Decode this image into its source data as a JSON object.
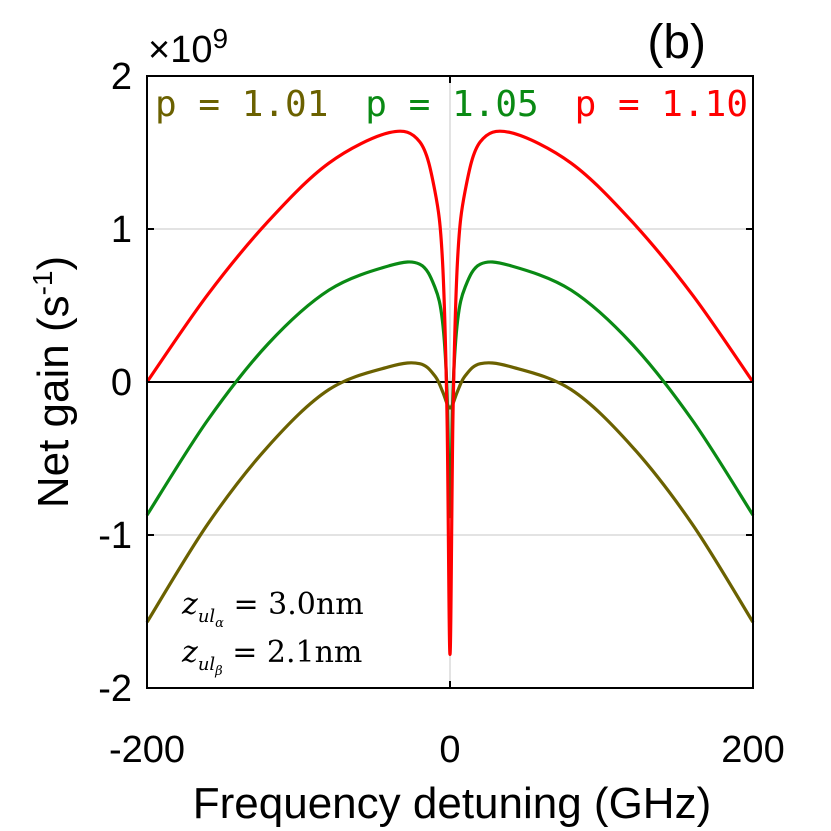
{
  "chart_data": {
    "type": "line",
    "panel_label": "(b)",
    "xlabel": "Frequency detuning (GHz)",
    "ylabel_main": "Net gain (s",
    "ylabel_exp": "-1",
    "ylabel_close": ")",
    "exponent_prefix": "×10",
    "exponent_power": "9",
    "xlim": [
      -200,
      200
    ],
    "ylim": [
      -2,
      2
    ],
    "xticks": [
      -200,
      0,
      200
    ],
    "xtick_labels": [
      "-200",
      "0",
      "200"
    ],
    "yticks": [
      -2,
      -1,
      0,
      1,
      2
    ],
    "ytick_labels": [
      "-2",
      "-1",
      "0",
      "1",
      "2"
    ],
    "grid": true,
    "x": [
      -200,
      -160,
      -120,
      -80,
      -40,
      -20,
      -10,
      -5,
      -2,
      0,
      2,
      5,
      10,
      20,
      40,
      80,
      120,
      160,
      200
    ],
    "series": [
      {
        "name": "p = 1.01",
        "color": "#6b6100",
        "values": [
          -1.57,
          -0.93,
          -0.42,
          -0.05,
          0.1,
          0.12,
          0.04,
          -0.06,
          -0.14,
          -0.17,
          -0.14,
          -0.06,
          0.04,
          0.12,
          0.1,
          -0.05,
          -0.42,
          -0.93,
          -1.57
        ]
      },
      {
        "name": "p = 1.05",
        "color": "#0a8a14",
        "values": [
          -0.87,
          -0.25,
          0.25,
          0.6,
          0.76,
          0.77,
          0.62,
          0.4,
          -0.05,
          -0.88,
          -0.05,
          0.4,
          0.62,
          0.77,
          0.76,
          0.6,
          0.25,
          -0.25,
          -0.87
        ]
      },
      {
        "name": "p = 1.10",
        "color": "#ff0000",
        "values": [
          0.0,
          0.57,
          1.05,
          1.43,
          1.63,
          1.57,
          1.25,
          0.8,
          -0.2,
          -1.78,
          -0.2,
          0.8,
          1.25,
          1.57,
          1.63,
          1.43,
          1.05,
          0.57,
          0.0
        ]
      }
    ],
    "annotations": [
      {
        "base": "z",
        "sub": "ul",
        "subsub": "α",
        "rest": " = 3.0nm"
      },
      {
        "base": "z",
        "sub": "ul",
        "subsub": "β",
        "rest": " = 2.1nm"
      }
    ]
  }
}
